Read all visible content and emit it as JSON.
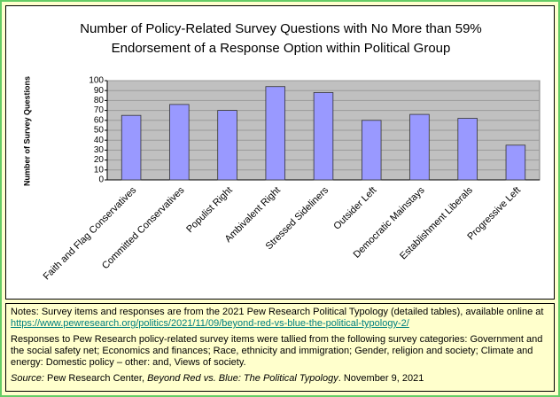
{
  "chart_data": {
    "type": "bar",
    "title": [
      "Number of Policy-Related Survey Questions with No More than 59%",
      "Endorsement of a Response Option within Political Group"
    ],
    "y_label": "Number of Survey Questions",
    "categories": [
      "Faith and Flag Conservatives",
      "Committed Conservatives",
      "Populist Right",
      "Ambivalent Right",
      "Stressed Sideliners",
      "Outsider Left",
      "Democratic Mainstays",
      "Establishment Liberals",
      "Progressive Left"
    ],
    "values": [
      65,
      76,
      70,
      94,
      88,
      60,
      66,
      62,
      35
    ],
    "color": "#9999ff",
    "ylim": [
      0,
      100
    ],
    "yticks": [
      0,
      10,
      20,
      30,
      40,
      50,
      60,
      70,
      80,
      90,
      100
    ],
    "grid": true
  },
  "notes": {
    "notes_text": "Notes: Survey items and responses are from the 2021 Pew Research Political Typology (detailed tables), available online at ",
    "link": "https://www.pewresearch.org/politics/2021/11/09/beyond-red-vs-blue-the-political-typology-2/",
    "responses_text": "Responses to Pew Research policy-related survey items were tallied from the following survey categories: Government and the social safety net; Economics and finances; Race, ethnicity and immigration; Gender, religion and society; Climate and energy: Domestic policy – other: and, Views of society.",
    "source_label": "Source:",
    "source_text": " Pew Research Center, ",
    "source_title": "Beyond Red vs. Blue: The Political Typology",
    "source_date": ". November 9, 2021"
  }
}
